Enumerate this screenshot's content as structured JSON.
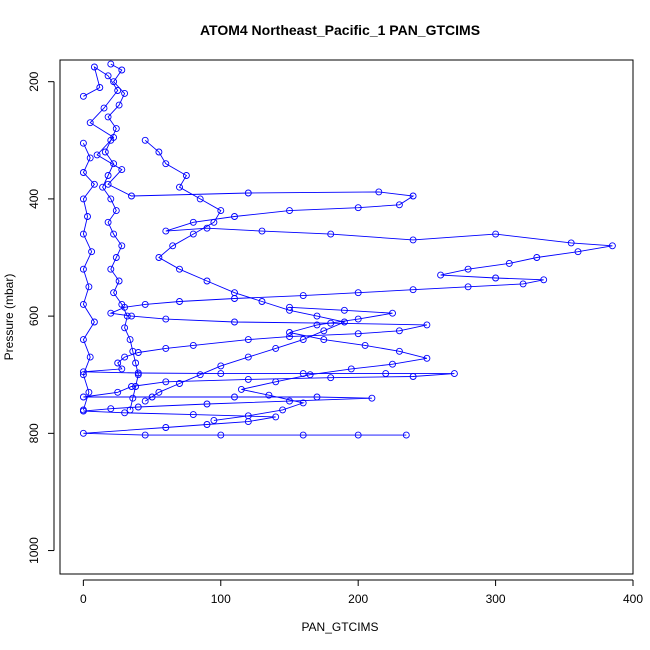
{
  "chart_data": {
    "type": "scatter",
    "title": "ATOM4 Northeast_Pacific_1 PAN_GTCIMS",
    "xlabel": "PAN_GTCIMS",
    "ylabel": "Pressure (mbar)",
    "xlim": [
      -17,
      400
    ],
    "ylim": [
      1040,
      163
    ],
    "y_reversed": true,
    "x_ticks": [
      0,
      100,
      200,
      300,
      400
    ],
    "y_ticks": [
      200,
      400,
      600,
      800,
      1000
    ],
    "grid": false,
    "legend": "none",
    "marker": "open-circle",
    "connected": true,
    "series": [
      {
        "color": "#0000ff",
        "points": [
          [
            0,
            225
          ],
          [
            12,
            210
          ],
          [
            8,
            175
          ],
          [
            18,
            190
          ],
          [
            25,
            215
          ],
          [
            15,
            245
          ],
          [
            5,
            270
          ],
          [
            22,
            295
          ],
          [
            10,
            325
          ],
          [
            28,
            350
          ],
          [
            18,
            375
          ],
          [
            35,
            395
          ],
          [
            120,
            390
          ],
          [
            215,
            388
          ],
          [
            240,
            395
          ],
          [
            230,
            410
          ],
          [
            200,
            415
          ],
          [
            150,
            420
          ],
          [
            110,
            430
          ],
          [
            80,
            440
          ],
          [
            60,
            455
          ],
          [
            90,
            450
          ],
          [
            130,
            455
          ],
          [
            180,
            460
          ],
          [
            240,
            470
          ],
          [
            300,
            460
          ],
          [
            355,
            475
          ],
          [
            385,
            480
          ],
          [
            360,
            490
          ],
          [
            330,
            500
          ],
          [
            310,
            510
          ],
          [
            280,
            520
          ],
          [
            260,
            530
          ],
          [
            300,
            535
          ],
          [
            335,
            538
          ],
          [
            320,
            545
          ],
          [
            280,
            550
          ],
          [
            240,
            555
          ],
          [
            200,
            560
          ],
          [
            160,
            565
          ],
          [
            110,
            570
          ],
          [
            70,
            575
          ],
          [
            45,
            580
          ],
          [
            30,
            585
          ],
          [
            20,
            595
          ],
          [
            35,
            600
          ],
          [
            60,
            605
          ],
          [
            110,
            610
          ],
          [
            180,
            612
          ],
          [
            250,
            615
          ],
          [
            230,
            625
          ],
          [
            200,
            630
          ],
          [
            150,
            635
          ],
          [
            120,
            640
          ],
          [
            80,
            650
          ],
          [
            60,
            655
          ],
          [
            40,
            662
          ],
          [
            30,
            670
          ],
          [
            25,
            680
          ],
          [
            28,
            690
          ],
          [
            0,
            695
          ],
          [
            40,
            697
          ],
          [
            100,
            698
          ],
          [
            160,
            698
          ],
          [
            220,
            698
          ],
          [
            270,
            698
          ],
          [
            240,
            703
          ],
          [
            180,
            705
          ],
          [
            120,
            708
          ],
          [
            60,
            712
          ],
          [
            35,
            720
          ],
          [
            25,
            730
          ],
          [
            0,
            738
          ],
          [
            50,
            738
          ],
          [
            110,
            738
          ],
          [
            170,
            738
          ],
          [
            210,
            740
          ],
          [
            150,
            745
          ],
          [
            90,
            750
          ],
          [
            40,
            755
          ],
          [
            20,
            758
          ],
          [
            0,
            762
          ],
          [
            30,
            765
          ],
          [
            80,
            768
          ],
          [
            140,
            772
          ],
          [
            120,
            780
          ],
          [
            90,
            785
          ],
          [
            60,
            790
          ],
          [
            0,
            800
          ],
          [
            45,
            803
          ],
          [
            100,
            803
          ],
          [
            160,
            803
          ],
          [
            200,
            803
          ],
          [
            235,
            803
          ]
        ]
      },
      {
        "color": "#0000ff",
        "points": [
          [
            20,
            170
          ],
          [
            28,
            180
          ],
          [
            22,
            200
          ],
          [
            30,
            220
          ],
          [
            26,
            240
          ],
          [
            18,
            260
          ],
          [
            24,
            280
          ],
          [
            20,
            300
          ],
          [
            16,
            320
          ],
          [
            22,
            340
          ],
          [
            18,
            360
          ],
          [
            14,
            380
          ],
          [
            20,
            400
          ],
          [
            24,
            420
          ],
          [
            18,
            440
          ],
          [
            22,
            460
          ],
          [
            28,
            480
          ],
          [
            24,
            500
          ],
          [
            20,
            520
          ],
          [
            26,
            540
          ],
          [
            22,
            560
          ],
          [
            28,
            580
          ],
          [
            32,
            600
          ],
          [
            30,
            620
          ],
          [
            34,
            640
          ],
          [
            36,
            660
          ],
          [
            38,
            680
          ],
          [
            40,
            700
          ],
          [
            38,
            720
          ],
          [
            36,
            740
          ],
          [
            34,
            760
          ]
        ]
      },
      {
        "color": "#0000ff",
        "points": [
          [
            45,
            300
          ],
          [
            55,
            320
          ],
          [
            60,
            340
          ],
          [
            75,
            360
          ],
          [
            70,
            380
          ],
          [
            85,
            400
          ],
          [
            100,
            420
          ],
          [
            95,
            440
          ],
          [
            80,
            460
          ],
          [
            65,
            480
          ],
          [
            55,
            500
          ],
          [
            70,
            520
          ],
          [
            90,
            540
          ],
          [
            110,
            560
          ],
          [
            130,
            575
          ],
          [
            150,
            590
          ],
          [
            170,
            600
          ],
          [
            190,
            610
          ],
          [
            175,
            625
          ],
          [
            160,
            640
          ],
          [
            140,
            655
          ],
          [
            120,
            670
          ],
          [
            100,
            685
          ],
          [
            85,
            700
          ],
          [
            70,
            715
          ],
          [
            55,
            730
          ],
          [
            45,
            745
          ]
        ]
      },
      {
        "color": "#0000ff",
        "points": [
          [
            0,
            305
          ],
          [
            5,
            330
          ],
          [
            0,
            355
          ],
          [
            8,
            375
          ],
          [
            0,
            400
          ],
          [
            3,
            430
          ],
          [
            0,
            460
          ],
          [
            6,
            490
          ],
          [
            0,
            520
          ],
          [
            4,
            550
          ],
          [
            0,
            580
          ],
          [
            8,
            610
          ],
          [
            0,
            640
          ],
          [
            5,
            670
          ],
          [
            0,
            700
          ],
          [
            4,
            730
          ],
          [
            0,
            760
          ]
        ]
      },
      {
        "color": "#0000ff",
        "points": [
          [
            150,
            585
          ],
          [
            190,
            590
          ],
          [
            225,
            595
          ],
          [
            200,
            605
          ],
          [
            170,
            615
          ],
          [
            150,
            628
          ],
          [
            175,
            640
          ],
          [
            205,
            650
          ],
          [
            230,
            660
          ],
          [
            250,
            672
          ],
          [
            225,
            682
          ],
          [
            195,
            690
          ],
          [
            165,
            700
          ],
          [
            140,
            712
          ],
          [
            115,
            725
          ],
          [
            135,
            735
          ],
          [
            160,
            748
          ],
          [
            145,
            760
          ],
          [
            120,
            770
          ],
          [
            95,
            778
          ]
        ]
      }
    ]
  }
}
